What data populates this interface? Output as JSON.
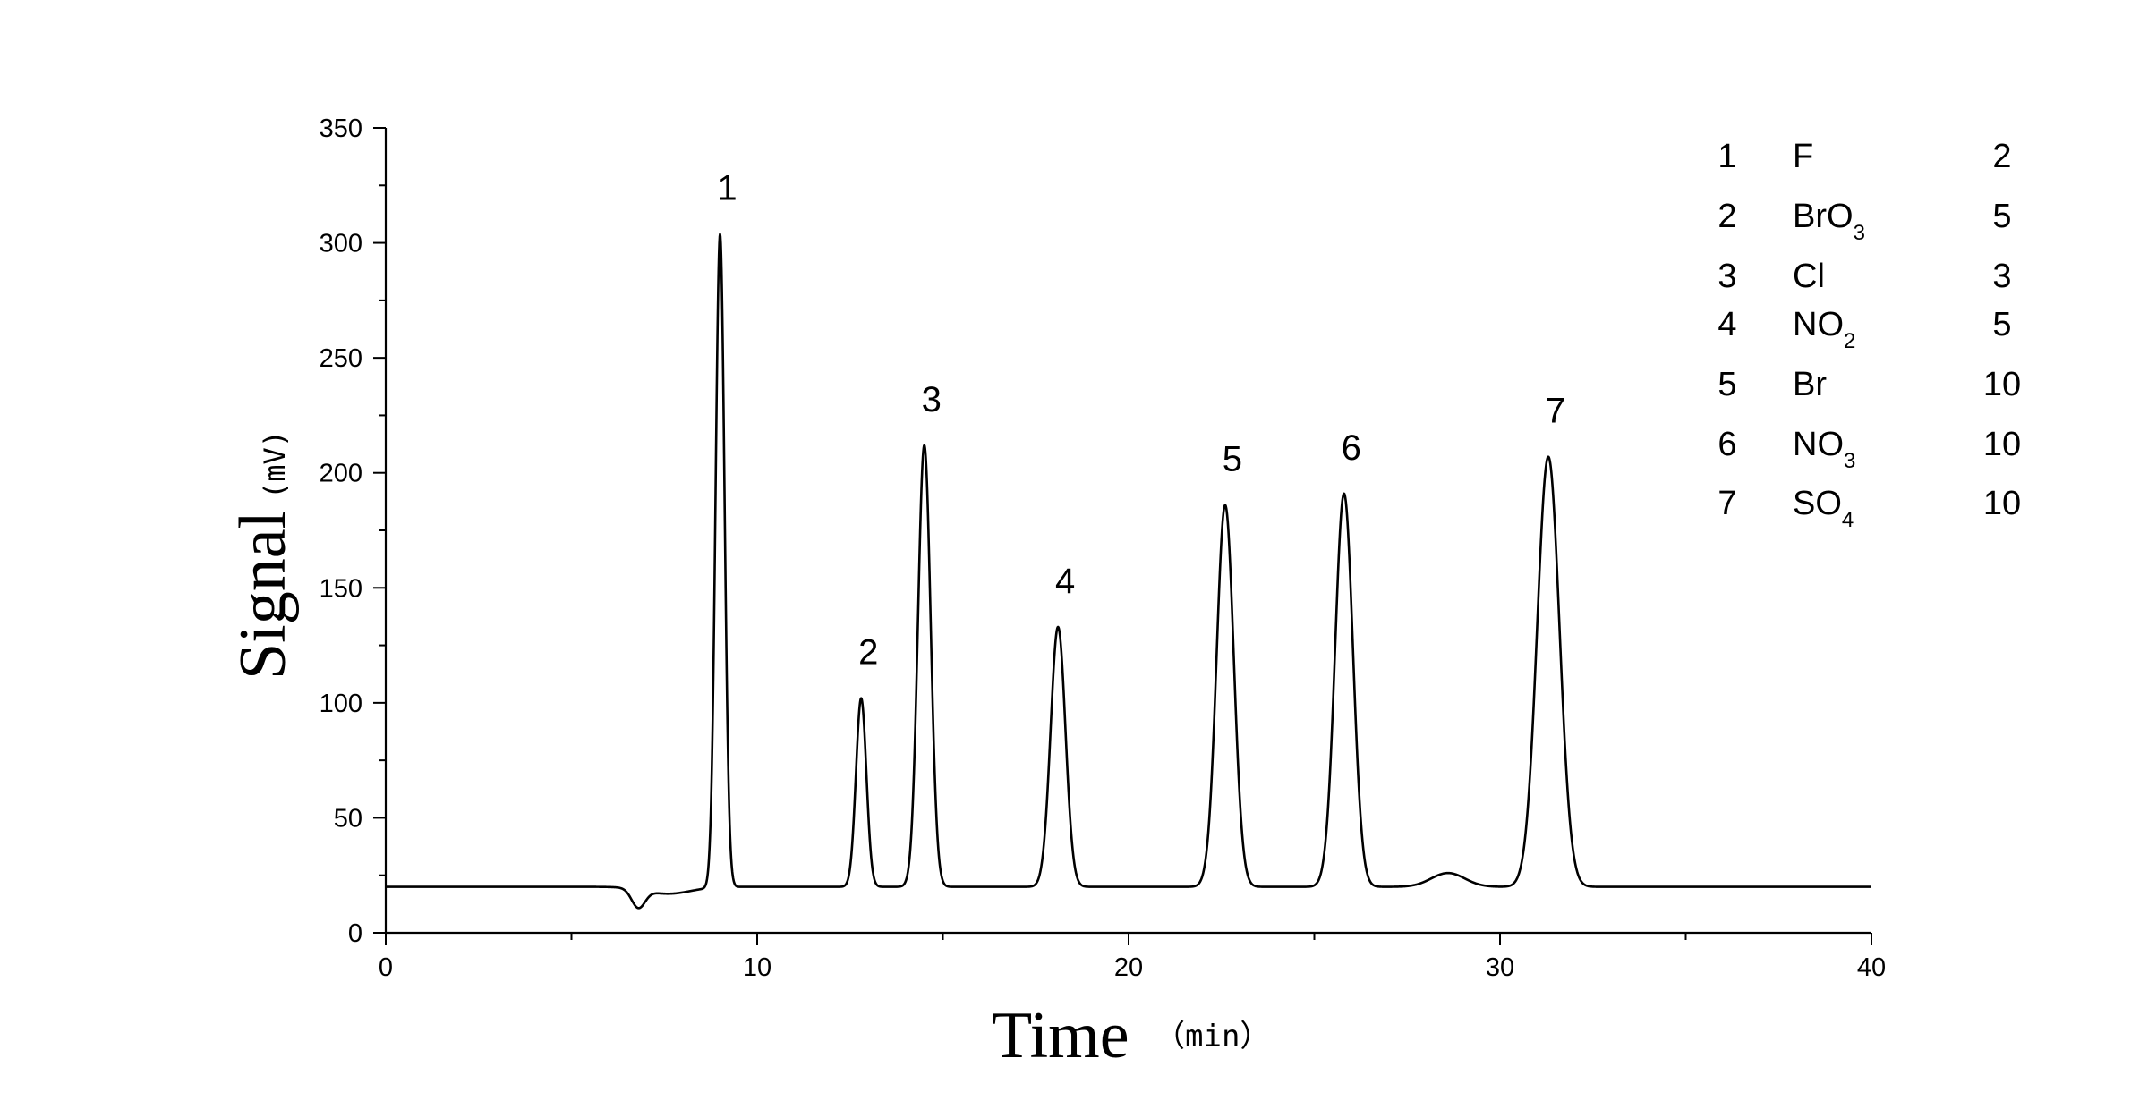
{
  "chart_data": {
    "type": "line",
    "xlabel": "Time",
    "xunit": "（min）",
    "ylabel": "Signal",
    "yunit": "(mV)",
    "xlim": [
      0,
      40
    ],
    "ylim": [
      0,
      350
    ],
    "x_ticks": [
      0,
      10,
      20,
      30,
      40
    ],
    "x_tick_labels": [
      "0",
      "10",
      "20",
      "30",
      "40"
    ],
    "y_ticks": [
      0,
      50,
      100,
      150,
      200,
      250,
      300,
      350
    ],
    "y_tick_labels": [
      "0",
      "50",
      "100",
      "150",
      "200",
      "250",
      "300",
      "350"
    ],
    "grid": false,
    "baseline": 20,
    "series": [
      {
        "peaks": [
          {
            "label": "1",
            "time": 9.0,
            "height": 304
          },
          {
            "label": "2",
            "time": 12.8,
            "height": 102
          },
          {
            "label": "3",
            "time": 14.5,
            "height": 212
          },
          {
            "label": "4",
            "time": 18.1,
            "height": 133
          },
          {
            "label": "5",
            "time": 22.6,
            "height": 186
          },
          {
            "label": "6",
            "time": 25.8,
            "height": 191
          },
          {
            "label": "7",
            "time": 31.3,
            "height": 207
          }
        ],
        "minor_features": [
          {
            "time": 6.8,
            "height": 12
          },
          {
            "time": 28.6,
            "height": 26
          }
        ]
      }
    ],
    "legend": {
      "placement": "top-right",
      "rows": [
        {
          "num": "1",
          "ion": "F",
          "sub": "",
          "conc": "2"
        },
        {
          "num": "2",
          "ion": "BrO",
          "sub": "3",
          "conc": "5"
        },
        {
          "num": "3",
          "ion": "Cl",
          "sub": "",
          "conc": "3"
        },
        {
          "num": "4",
          "ion": "NO",
          "sub": "2",
          "conc": "5"
        },
        {
          "num": "5",
          "ion": "Br",
          "sub": "",
          "conc": "10"
        },
        {
          "num": "6",
          "ion": "NO",
          "sub": "3",
          "conc": "10"
        },
        {
          "num": "7",
          "ion": "SO",
          "sub": "4",
          "conc": "10"
        }
      ]
    }
  }
}
